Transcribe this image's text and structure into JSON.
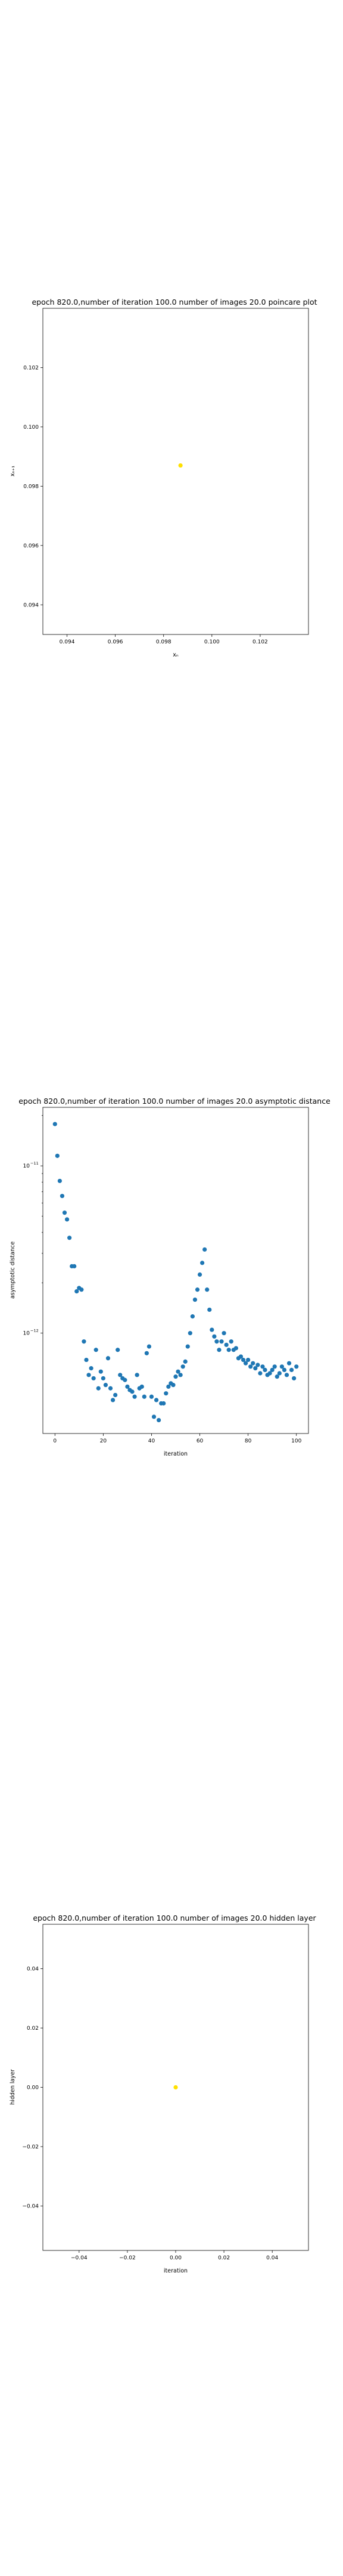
{
  "chart_data": [
    {
      "type": "scatter",
      "title": "epoch 820.0,number of iteration 100.0 number of images 20.0 poincare plot",
      "xlabel": "xₙ",
      "ylabel": "xₙ₊₁",
      "xlim": [
        0.093,
        0.104
      ],
      "ylim": [
        0.093,
        0.104
      ],
      "xticks": [
        "0.094",
        "0.096",
        "0.098",
        "0.100",
        "0.102"
      ],
      "yticks": [
        "0.094",
        "0.096",
        "0.098",
        "0.100",
        "0.102"
      ],
      "marker_color": "#ffe000",
      "points": [
        {
          "x": 0.0987,
          "y": 0.0987
        }
      ]
    },
    {
      "type": "scatter",
      "title": "epoch 820.0,number of iteration 100.0  number of images 20.0 asymptotic distance",
      "xlabel": "iteration",
      "ylabel": "asymptotic distance",
      "xlim": [
        -5,
        105
      ],
      "yscale": "log",
      "yticks_pow": [
        -11,
        -12
      ],
      "marker_color": "#1f77b4",
      "y_exponents": [
        -10.75,
        -10.94,
        -11.09,
        -11.18,
        -11.28,
        -11.32,
        -11.43,
        -11.6,
        -11.6,
        -11.75,
        -11.73,
        -11.74,
        -12.05,
        -12.16,
        -12.25,
        -12.21,
        -12.27,
        -12.1,
        -12.33,
        -12.23,
        -12.27,
        -12.31,
        -12.15,
        -12.33,
        -12.4,
        -12.37,
        -12.1,
        -12.25,
        -12.27,
        -12.28,
        -12.32,
        -12.34,
        -12.35,
        -12.38,
        -12.25,
        -12.33,
        -12.32,
        -12.38,
        -12.12,
        -12.08,
        -12.38,
        -12.5,
        -12.4,
        -12.52,
        -12.42,
        -12.42,
        -12.36,
        -12.32,
        -12.3,
        -12.31,
        -12.26,
        -12.23,
        -12.25,
        -12.2,
        -12.17,
        -12.08,
        -12.0,
        -11.9,
        -11.8,
        -11.74,
        -11.65,
        -11.58,
        -11.5,
        -11.74,
        -11.86,
        -11.98,
        -12.02,
        -12.05,
        -12.1,
        -12.05,
        -12.0,
        -12.07,
        -12.1,
        -12.05,
        -12.1,
        -12.09,
        -12.15,
        -12.14,
        -12.16,
        -12.18,
        -12.16,
        -12.2,
        -12.18,
        -12.21,
        -12.19,
        -12.24,
        -12.2,
        -12.22,
        -12.25,
        -12.24,
        -12.22,
        -12.2,
        -12.26,
        -12.24,
        -12.2,
        -12.22,
        -12.25,
        -12.18,
        -12.22,
        -12.27,
        -12.2
      ]
    },
    {
      "type": "scatter",
      "title": "epoch 820.0,number of iteration 100.0  number of images 20.0 hidden layer",
      "xlabel": "iteration",
      "ylabel": "hidden layer",
      "xlim": [
        -0.055,
        0.055
      ],
      "ylim": [
        -0.055,
        0.055
      ],
      "xticks": [
        "−0.04",
        "−0.02",
        "0.00",
        "0.02",
        "0.04"
      ],
      "yticks": [
        "−0.04",
        "−0.02",
        "0.00",
        "0.02",
        "0.04"
      ],
      "marker_color": "#ffe000",
      "points": [
        {
          "x": 0.0,
          "y": 0.0
        }
      ]
    }
  ]
}
